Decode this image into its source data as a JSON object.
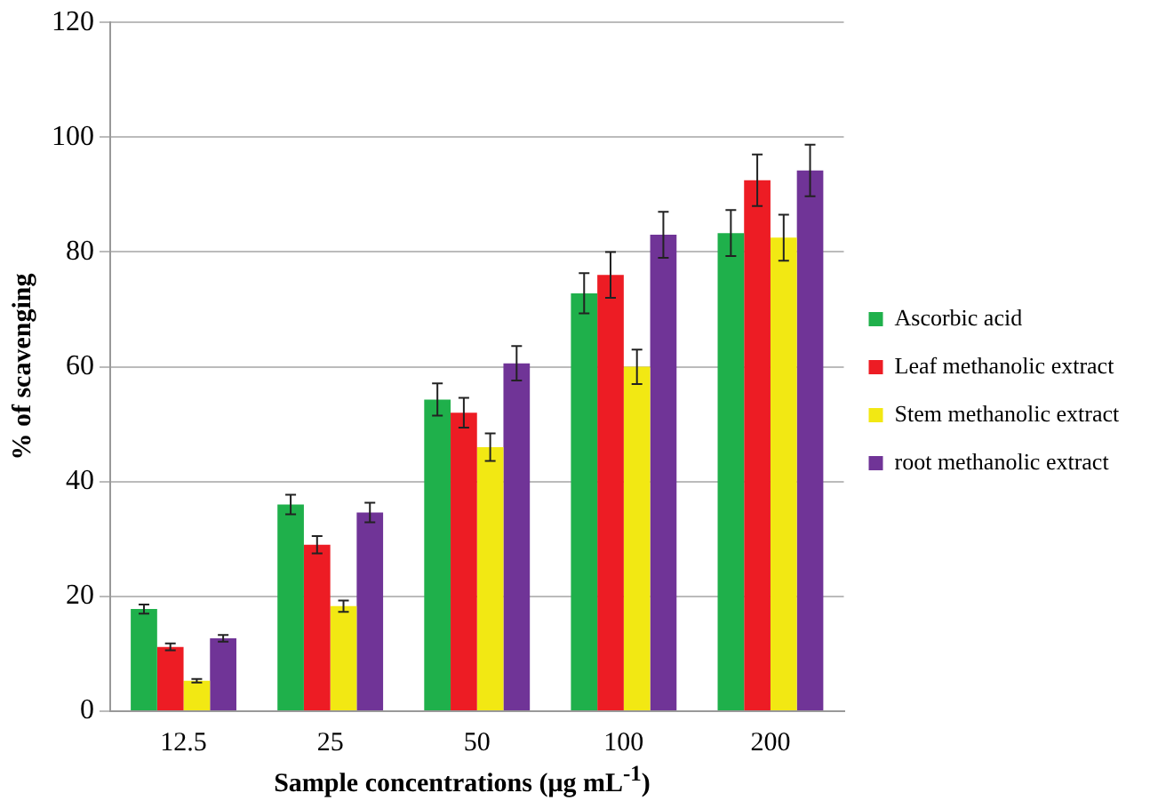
{
  "chart_data": {
    "type": "bar",
    "xlabel": "Sample concentrations (μg mL$^{-1}$)",
    "ylabel": "% of scavenging",
    "categories": [
      "12.5",
      "25",
      "50",
      "100",
      "200"
    ],
    "series": [
      {
        "name": "Ascorbic acid",
        "color": "#1fb04b",
        "values": [
          17.8,
          36,
          54.3,
          72.8,
          83.3
        ],
        "errors": [
          0.8,
          1.7,
          2.8,
          3.5,
          4
        ]
      },
      {
        "name": "Leaf methanolic extract",
        "color": "#ed1c24",
        "values": [
          11.2,
          29,
          52,
          76,
          92.5
        ],
        "errors": [
          0.6,
          1.5,
          2.6,
          4,
          4.5
        ]
      },
      {
        "name": "Stem methanolic extract",
        "color": "#f2e813",
        "values": [
          5.3,
          18.3,
          46,
          60,
          82.5
        ],
        "errors": [
          0.3,
          1,
          2.4,
          3,
          4
        ]
      },
      {
        "name": "root methanolic extract",
        "color": "#703497",
        "values": [
          12.7,
          34.6,
          60.6,
          83,
          94.2
        ],
        "errors": [
          0.6,
          1.7,
          3,
          4,
          4.5
        ]
      }
    ],
    "ylim": [
      0,
      120
    ],
    "yticks": [
      0,
      20,
      40,
      60,
      80,
      100,
      120
    ],
    "grid": "y",
    "legend": "right"
  }
}
